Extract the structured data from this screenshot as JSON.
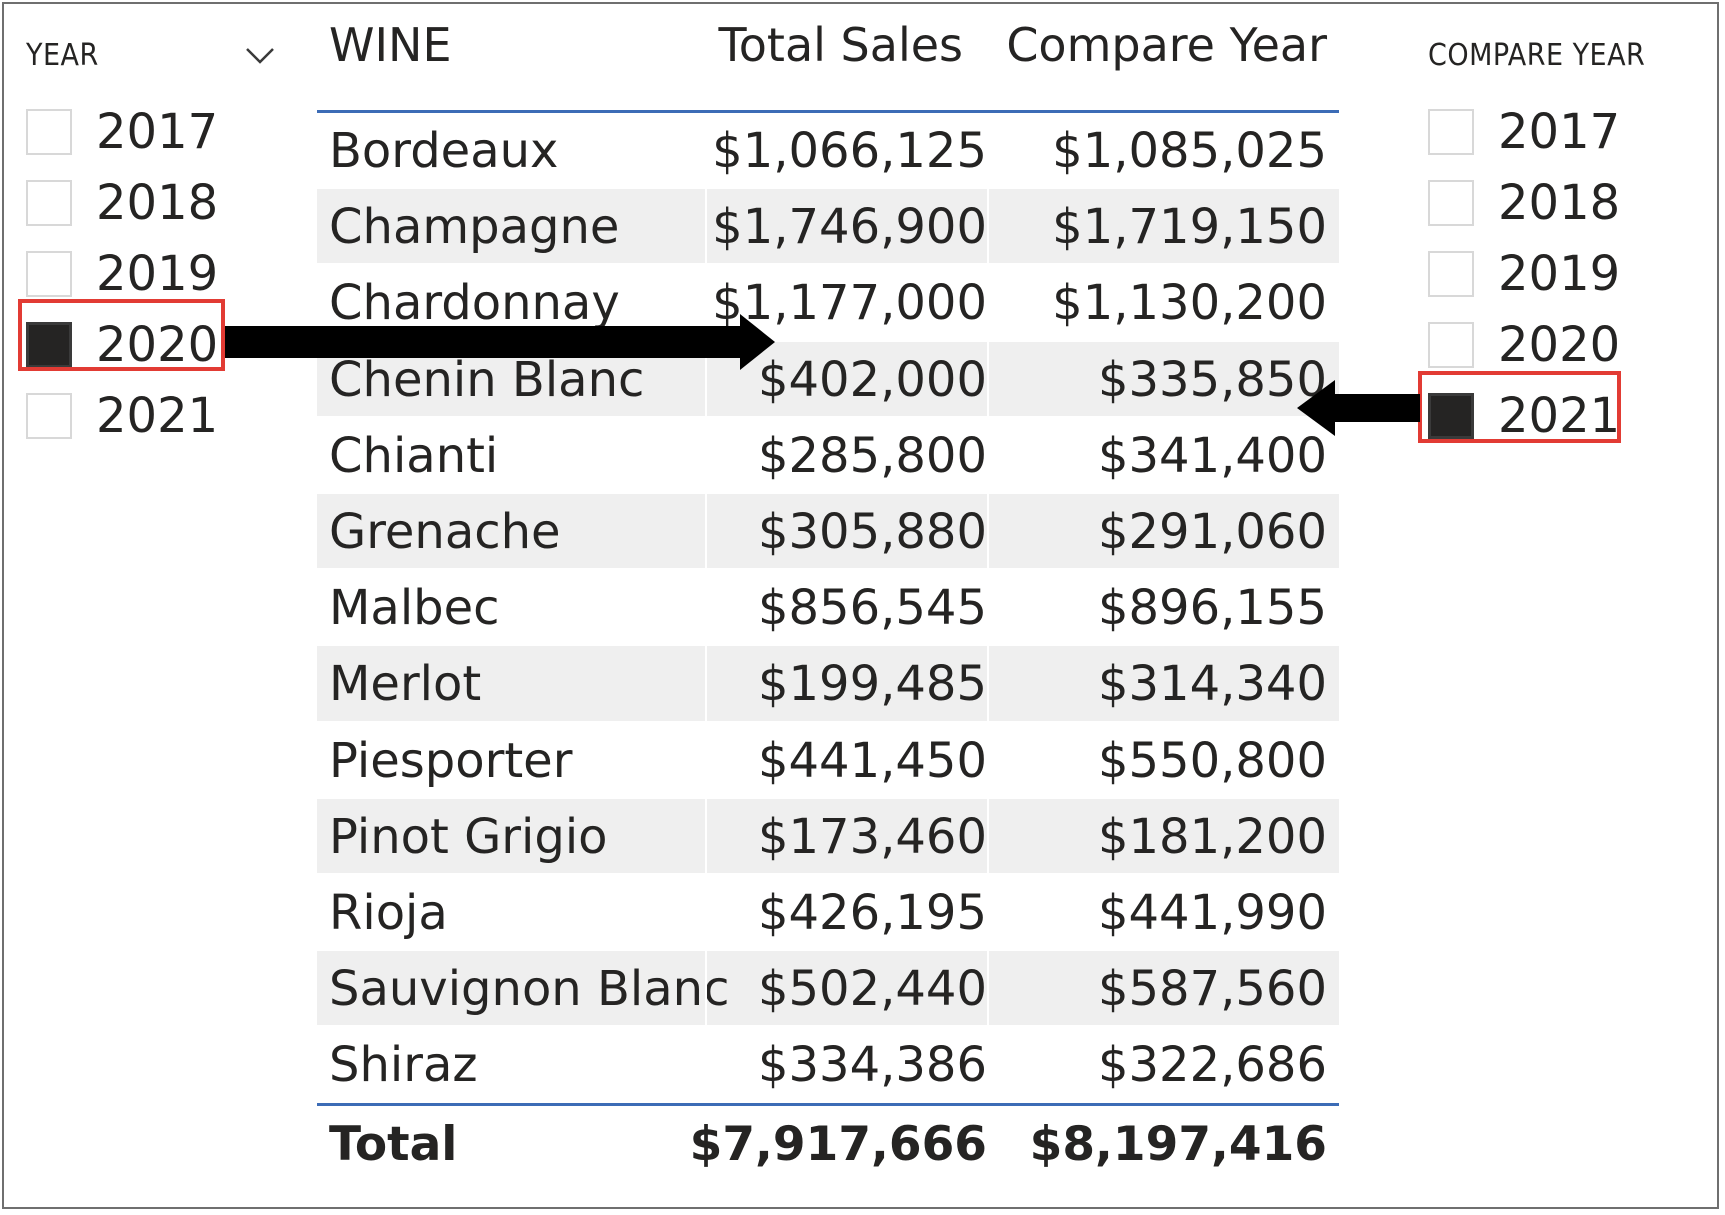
{
  "year_slicer": {
    "title": "YEAR",
    "options": [
      {
        "label": "2017",
        "checked": false
      },
      {
        "label": "2018",
        "checked": false
      },
      {
        "label": "2019",
        "checked": false
      },
      {
        "label": "2020",
        "checked": true
      },
      {
        "label": "2021",
        "checked": false
      }
    ]
  },
  "compare_slicer": {
    "title": "COMPARE YEAR",
    "options": [
      {
        "label": "2017",
        "checked": false
      },
      {
        "label": "2018",
        "checked": false
      },
      {
        "label": "2019",
        "checked": false
      },
      {
        "label": "2020",
        "checked": false
      },
      {
        "label": "2021",
        "checked": true
      }
    ]
  },
  "table": {
    "headers": [
      "WINE",
      "Total Sales",
      "Compare Year"
    ],
    "rows": [
      [
        "Bordeaux",
        "$1,066,125",
        "$1,085,025"
      ],
      [
        "Champagne",
        "$1,746,900",
        "$1,719,150"
      ],
      [
        "Chardonnay",
        "$1,177,000",
        "$1,130,200"
      ],
      [
        "Chenin Blanc",
        "$402,000",
        "$335,850"
      ],
      [
        "Chianti",
        "$285,800",
        "$341,400"
      ],
      [
        "Grenache",
        "$305,880",
        "$291,060"
      ],
      [
        "Malbec",
        "$856,545",
        "$896,155"
      ],
      [
        "Merlot",
        "$199,485",
        "$314,340"
      ],
      [
        "Piesporter",
        "$441,450",
        "$550,800"
      ],
      [
        "Pinot Grigio",
        "$173,460",
        "$181,200"
      ],
      [
        "Rioja",
        "$426,195",
        "$441,990"
      ],
      [
        "Sauvignon Blanc",
        "$502,440",
        "$587,560"
      ],
      [
        "Shiraz",
        "$334,386",
        "$322,686"
      ]
    ],
    "total": [
      "Total",
      "$7,917,666",
      "$8,197,416"
    ]
  },
  "colors": {
    "highlight": "#e23b34",
    "header_rule": "#3c6cb6",
    "row_band": "#efefef",
    "checkbox_checked": "#252423",
    "arrow": "#000000"
  }
}
